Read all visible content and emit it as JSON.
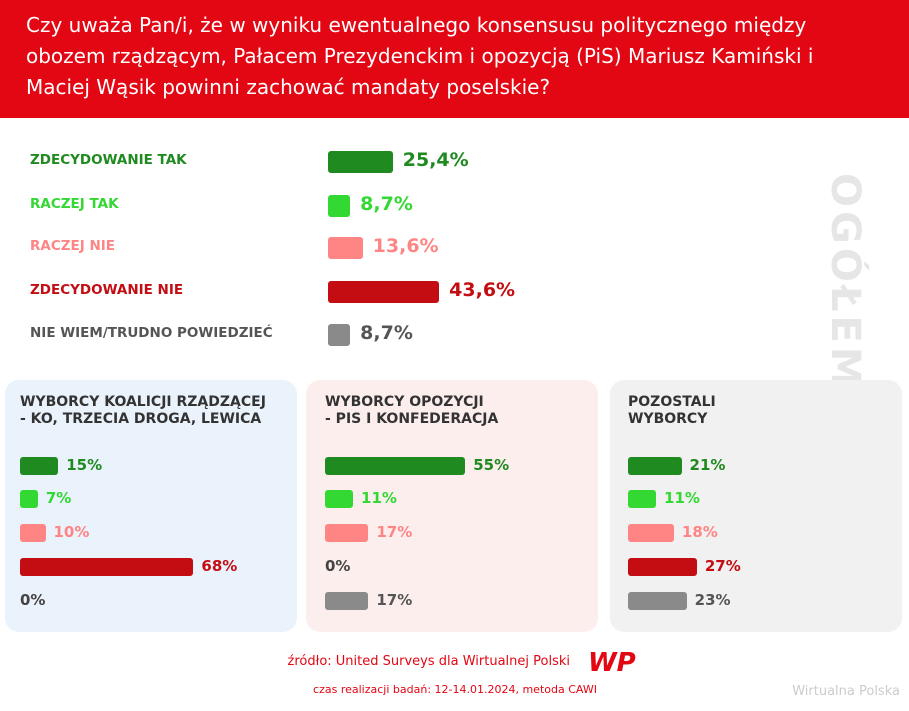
{
  "title": "Czy uważa Pan/i, że w wyniku ewentualnego konsensusu politycznego między obozem rządzącym, Pałacem Prezydenckim i opozycją (PiS) Mariusz Kamiński i Maciej Wąsik powinni zachować mandaty poselskie?",
  "chart_data": [
    {
      "type": "bar",
      "title": "OGÓŁEM",
      "categories": [
        "ZDECYDOWANIE TAK",
        "RACZEJ TAK",
        "RACZEJ NIE",
        "ZDECYDOWANIE NIE",
        "NIE WIEM/TRUDNO POWIEDZIEĆ"
      ],
      "values": [
        25.4,
        8.7,
        13.6,
        43.6,
        8.7
      ],
      "value_labels": [
        "25,4%",
        "8,7%",
        "13,6%",
        "43,6%",
        "8,7%"
      ],
      "colors": [
        "#1f8a1f",
        "#33d833",
        "#ff8585",
        "#c40d12",
        "#8a8a8a"
      ]
    },
    {
      "type": "bar",
      "title": "WYBORCY KOALICJI RZĄDZĄCEJ\n- KO, TRZECIA DROGA, LEWICA",
      "values": [
        15,
        7,
        10,
        68,
        0
      ],
      "value_labels": [
        "15%",
        "7%",
        "10%",
        "68%",
        "0%"
      ]
    },
    {
      "type": "bar",
      "title": "WYBORCY OPOZYCJI\n- PIS I KONFEDERACJA",
      "values": [
        55,
        11,
        17,
        0,
        17
      ],
      "value_labels": [
        "55%",
        "11%",
        "17%",
        "0%",
        "17%"
      ]
    },
    {
      "type": "bar",
      "title": "POZOSTALI\nWYBORCY",
      "values": [
        21,
        11,
        18,
        27,
        23
      ],
      "value_labels": [
        "21%",
        "11%",
        "18%",
        "27%",
        "23%"
      ]
    }
  ],
  "source": "źródło: United Surveys dla Wirtualnej Polski",
  "logo": "WP",
  "period": "czas realizacji badań: 12-14.01.2024, metoda CAWI",
  "watermark": "Wirtualna Polska"
}
